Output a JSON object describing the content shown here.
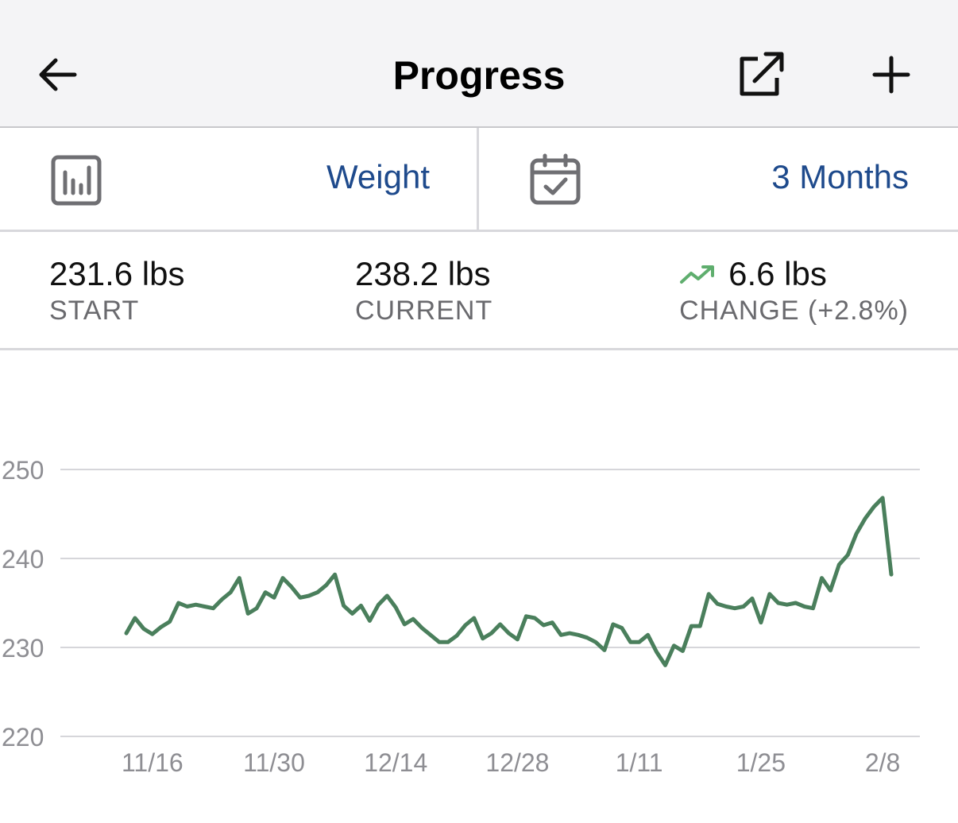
{
  "nav": {
    "title": "Progress",
    "back_icon": "arrow-left-icon",
    "share_icon": "share-icon",
    "add_icon": "plus-icon"
  },
  "selector": {
    "metric_label": "Weight",
    "range_label": "3 Months",
    "metric_icon": "bar-chart-icon",
    "range_icon": "calendar-check-icon"
  },
  "stats": {
    "start_value": "231.6 lbs",
    "start_label": "START",
    "current_value": "238.2 lbs",
    "current_label": "CURRENT",
    "change_value": "6.6 lbs",
    "change_label": "CHANGE (+2.8%)",
    "change_icon": "trend-up-icon"
  },
  "colors": {
    "accent": "#1e4a8c",
    "line": "#4a7f5c",
    "trend": "#5fae6e",
    "grid": "#d6d6da",
    "tick": "#8e8e93"
  },
  "chart_data": {
    "type": "line",
    "title": "",
    "xlabel": "",
    "ylabel": "",
    "ylim": [
      220,
      250
    ],
    "yticks": [
      220,
      230,
      240,
      250
    ],
    "xticks": [
      {
        "label": "11/16",
        "day": 3
      },
      {
        "label": "11/30",
        "day": 17
      },
      {
        "label": "12/14",
        "day": 31
      },
      {
        "label": "12/28",
        "day": 45
      },
      {
        "label": "1/11",
        "day": 59
      },
      {
        "label": "1/25",
        "day": 73
      },
      {
        "label": "2/8",
        "day": 87
      }
    ],
    "grid": true,
    "series": [
      {
        "values": [
          [
            0,
            231.6
          ],
          [
            1,
            233.3
          ],
          [
            2,
            232.1
          ],
          [
            3,
            231.5
          ],
          [
            4,
            232.3
          ],
          [
            5,
            232.9
          ],
          [
            6,
            235.0
          ],
          [
            7,
            234.6
          ],
          [
            8,
            234.8
          ],
          [
            9,
            234.6
          ],
          [
            10,
            234.4
          ],
          [
            11,
            235.4
          ],
          [
            12,
            236.2
          ],
          [
            13,
            237.8
          ],
          [
            14,
            233.8
          ],
          [
            15,
            234.4
          ],
          [
            16,
            236.2
          ],
          [
            17,
            235.6
          ],
          [
            18,
            237.8
          ],
          [
            19,
            236.8
          ],
          [
            20,
            235.6
          ],
          [
            21,
            235.8
          ],
          [
            22,
            236.2
          ],
          [
            23,
            237.0
          ],
          [
            24,
            238.2
          ],
          [
            25,
            234.7
          ],
          [
            26,
            233.8
          ],
          [
            27,
            234.7
          ],
          [
            28,
            233.0
          ],
          [
            29,
            234.8
          ],
          [
            30,
            235.8
          ],
          [
            31,
            234.5
          ],
          [
            32,
            232.6
          ],
          [
            33,
            233.2
          ],
          [
            34,
            232.2
          ],
          [
            35,
            231.4
          ],
          [
            36,
            230.6
          ],
          [
            37,
            230.6
          ],
          [
            38,
            231.3
          ],
          [
            39,
            232.5
          ],
          [
            40,
            233.3
          ],
          [
            41,
            231.0
          ],
          [
            42,
            231.6
          ],
          [
            43,
            232.6
          ],
          [
            44,
            231.6
          ],
          [
            45,
            230.9
          ],
          [
            46,
            233.5
          ],
          [
            47,
            233.3
          ],
          [
            48,
            232.5
          ],
          [
            49,
            232.8
          ],
          [
            50,
            231.4
          ],
          [
            51,
            231.6
          ],
          [
            52,
            231.4
          ],
          [
            53,
            231.1
          ],
          [
            54,
            230.6
          ],
          [
            55,
            229.7
          ],
          [
            56,
            232.6
          ],
          [
            57,
            232.2
          ],
          [
            58,
            230.6
          ],
          [
            59,
            230.6
          ],
          [
            60,
            231.4
          ],
          [
            61,
            229.5
          ],
          [
            62,
            228.0
          ],
          [
            63,
            230.2
          ],
          [
            64,
            229.6
          ],
          [
            65,
            232.4
          ],
          [
            66,
            232.4
          ],
          [
            67,
            236.0
          ],
          [
            68,
            234.9
          ],
          [
            69,
            234.6
          ],
          [
            70,
            234.4
          ],
          [
            71,
            234.6
          ],
          [
            72,
            235.5
          ],
          [
            73,
            232.8
          ],
          [
            74,
            236.0
          ],
          [
            75,
            235.0
          ],
          [
            76,
            234.8
          ],
          [
            77,
            235.0
          ],
          [
            78,
            234.6
          ],
          [
            79,
            234.4
          ],
          [
            80,
            237.8
          ],
          [
            81,
            236.4
          ],
          [
            82,
            239.3
          ],
          [
            83,
            240.4
          ],
          [
            84,
            242.8
          ],
          [
            85,
            244.5
          ],
          [
            86,
            245.8
          ],
          [
            87,
            246.8
          ],
          [
            88,
            238.2
          ]
        ]
      }
    ]
  }
}
